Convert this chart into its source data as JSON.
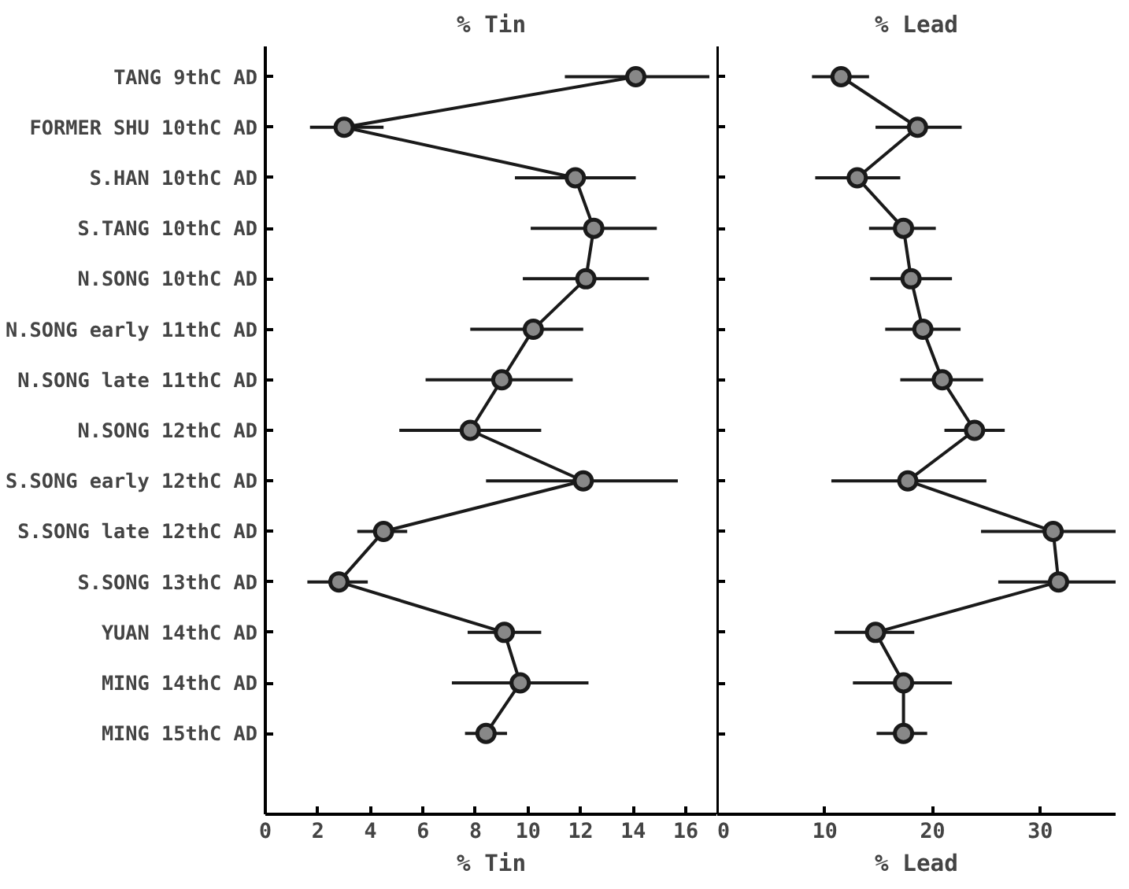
{
  "chart_data": [
    {
      "type": "line",
      "orientation": "horizontal",
      "title": "% Tin",
      "xlabel": "% Tin",
      "categories": [
        "TANG 9thC AD",
        "FORMER SHU 10thC AD",
        "S.HAN 10thC AD",
        "S.TANG 10thC AD",
        "N.SONG 10thC AD",
        "N.SONG early 11thC AD",
        "N.SONG late 11thC AD",
        "N.SONG 12thC AD",
        "S.SONG early 12thC AD",
        "S.SONG late 12thC AD",
        "S.SONG 13thC AD",
        "YUAN 14thC AD",
        "MING 14thC AD",
        "MING 15thC AD"
      ],
      "series": [
        {
          "color": "#1a1a1a",
          "values": [
            14.1,
            3.0,
            11.8,
            12.5,
            12.2,
            10.2,
            9.0,
            7.8,
            12.1,
            4.5,
            2.8,
            9.1,
            9.7,
            8.4
          ],
          "errors": [
            [
              11.4,
              16.9
            ],
            [
              1.7,
              4.5
            ],
            [
              9.5,
              14.1
            ],
            [
              10.1,
              14.9
            ],
            [
              9.8,
              14.6
            ],
            [
              7.8,
              12.1
            ],
            [
              6.1,
              11.7
            ],
            [
              5.1,
              10.5
            ],
            [
              8.4,
              15.7
            ],
            [
              3.5,
              5.4
            ],
            [
              1.6,
              3.9
            ],
            [
              7.7,
              10.5
            ],
            [
              7.1,
              12.3
            ],
            [
              7.6,
              9.2
            ]
          ]
        }
      ],
      "xlim": [
        0,
        17.2
      ],
      "xticks": [
        0,
        2,
        4,
        6,
        8,
        10,
        12,
        14,
        16
      ],
      "marker": "circle",
      "grid": false
    },
    {
      "type": "line",
      "orientation": "horizontal",
      "title": "% Lead",
      "xlabel": "% Lead",
      "categories": [
        null,
        null,
        null,
        null,
        null,
        null,
        null,
        null,
        null,
        null,
        null,
        null,
        null,
        null
      ],
      "series": [
        {
          "color": "#1a1a1a",
          "values": [
            11.5,
            18.6,
            13.0,
            17.3,
            18.0,
            19.1,
            20.9,
            23.9,
            17.7,
            31.2,
            31.7,
            14.7,
            17.3,
            17.3
          ],
          "errors": [
            [
              8.8,
              14.1
            ],
            [
              14.7,
              22.7
            ],
            [
              9.1,
              17.0
            ],
            [
              14.1,
              20.3
            ],
            [
              14.2,
              21.8
            ],
            [
              15.6,
              22.6
            ],
            [
              17.0,
              24.7
            ],
            [
              21.1,
              26.7
            ],
            [
              10.6,
              25.0
            ],
            [
              24.5,
              37
            ],
            [
              26.1,
              37
            ],
            [
              10.9,
              18.3
            ],
            [
              12.6,
              21.8
            ],
            [
              14.8,
              19.5
            ]
          ]
        }
      ],
      "xlim": [
        0,
        37
      ],
      "xticks": [
        0,
        10,
        20,
        30
      ],
      "marker": "circle",
      "grid": false,
      "tick_labels": "x"
    }
  ]
}
